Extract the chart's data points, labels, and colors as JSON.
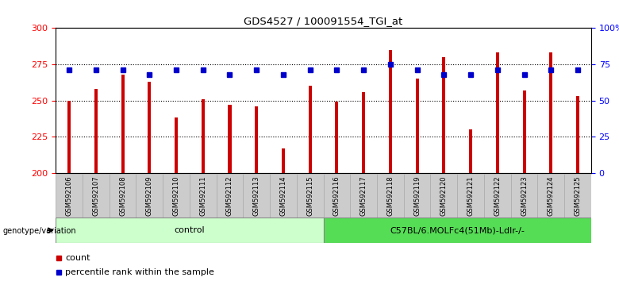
{
  "title": "GDS4527 / 100091554_TGI_at",
  "samples": [
    "GSM592106",
    "GSM592107",
    "GSM592108",
    "GSM592109",
    "GSM592110",
    "GSM592111",
    "GSM592112",
    "GSM592113",
    "GSM592114",
    "GSM592115",
    "GSM592116",
    "GSM592117",
    "GSM592118",
    "GSM592119",
    "GSM592120",
    "GSM592121",
    "GSM592122",
    "GSM592123",
    "GSM592124",
    "GSM592125"
  ],
  "counts": [
    250,
    258,
    268,
    263,
    238,
    251,
    247,
    246,
    217,
    260,
    249,
    256,
    285,
    265,
    280,
    230,
    283,
    257,
    283,
    253
  ],
  "percentiles": [
    71,
    71,
    71,
    68,
    71,
    71,
    68,
    71,
    68,
    71,
    71,
    71,
    75,
    71,
    68,
    68,
    71,
    68,
    71,
    71
  ],
  "control_group": [
    0,
    1,
    2,
    3,
    4,
    5,
    6,
    7,
    8,
    9
  ],
  "treatment_group": [
    10,
    11,
    12,
    13,
    14,
    15,
    16,
    17,
    18,
    19
  ],
  "control_label": "control",
  "treatment_label": "C57BL/6.MOLFc4(51Mb)-Ldlr-/-",
  "genotype_label": "genotype/variation",
  "ylim_left": [
    200,
    300
  ],
  "ylim_right": [
    0,
    100
  ],
  "yticks_left": [
    200,
    225,
    250,
    275,
    300
  ],
  "yticks_right": [
    0,
    25,
    50,
    75,
    100
  ],
  "bar_color": "#cc0000",
  "percentile_color": "#0000cc",
  "control_bg": "#ccffcc",
  "treatment_bg": "#55dd55",
  "sample_bg": "#cccccc",
  "legend_count_label": "count",
  "legend_percentile_label": "percentile rank within the sample",
  "bar_width": 0.12
}
